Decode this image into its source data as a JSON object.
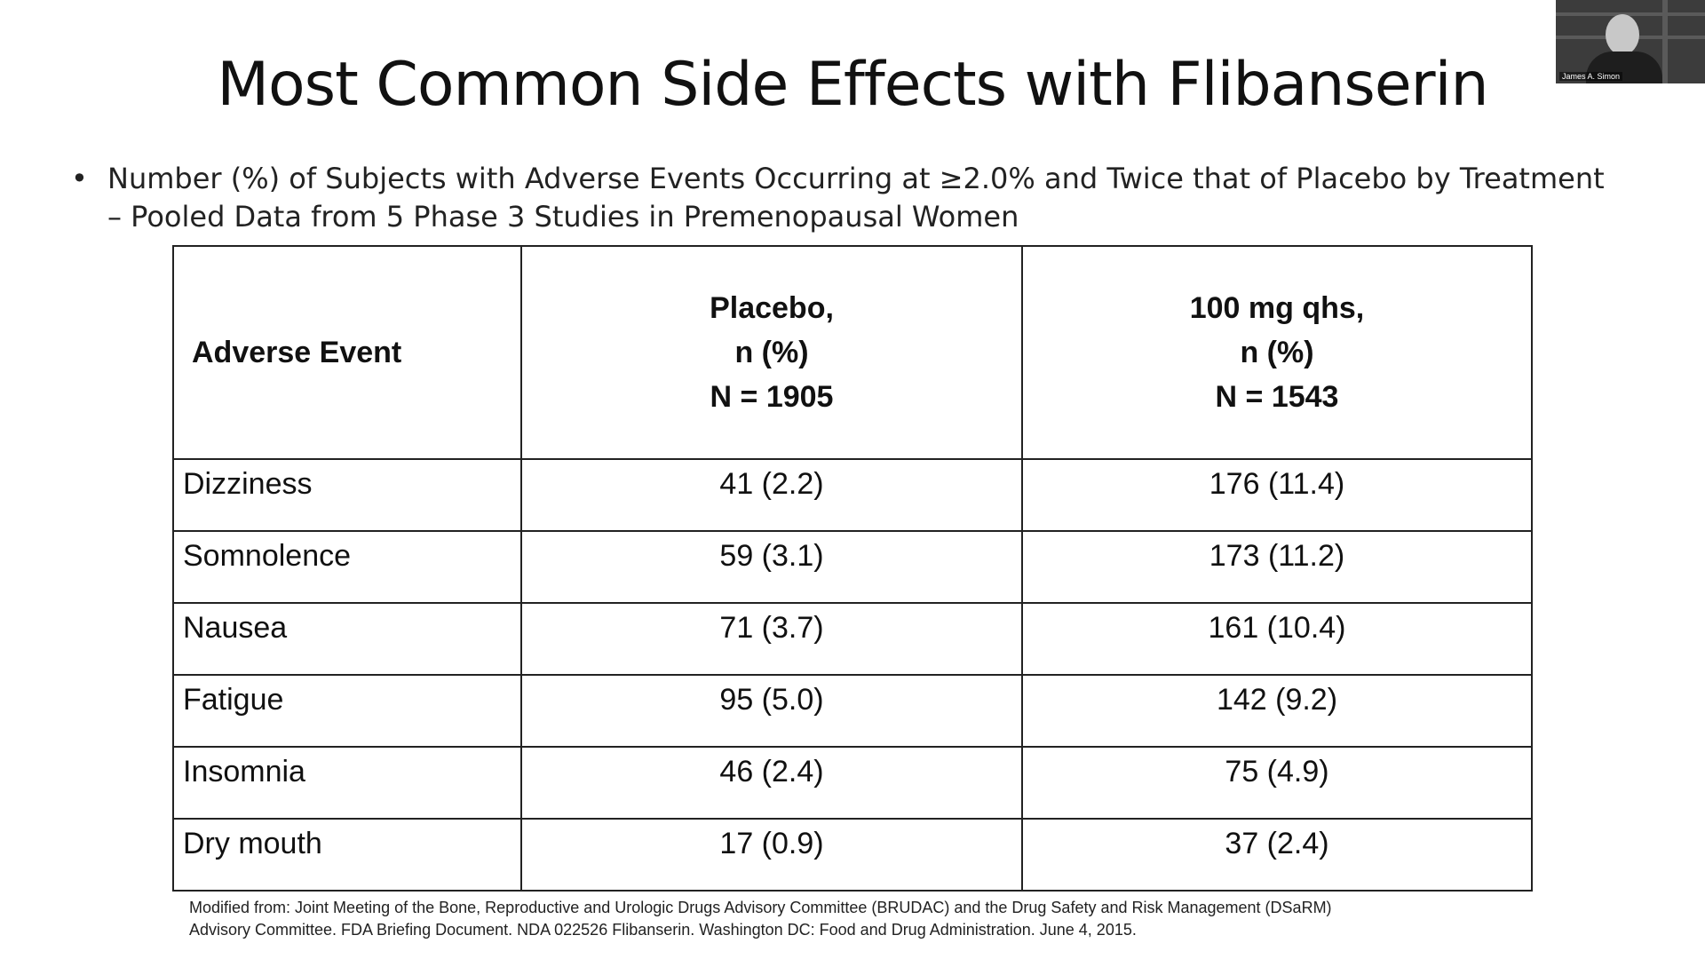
{
  "slide": {
    "title": "Most Common Side Effects with Flibanserin",
    "bullet_symbol": "•",
    "bullet_line1": "Number (%) of Subjects with Adverse Events Occurring at ≥2.0% and Twice that of Placebo by Treatment",
    "bullet_line2": "– Pooled Data from 5 Phase 3 Studies in Premenopausal Women"
  },
  "table": {
    "header": {
      "event": "Adverse Event",
      "placebo_line1": "Placebo,",
      "placebo_line2": "n (%)",
      "placebo_line3": "N = 1905",
      "dose_line1": "100 mg qhs,",
      "dose_line2": "n (%)",
      "dose_line3": "N = 1543"
    },
    "rows": [
      {
        "event": "Dizziness",
        "placebo": "41 (2.2)",
        "dose": "176 (11.4)"
      },
      {
        "event": "Somnolence",
        "placebo": "59 (3.1)",
        "dose": "173 (11.2)"
      },
      {
        "event": "Nausea",
        "placebo": "71 (3.7)",
        "dose": "161 (10.4)"
      },
      {
        "event": "Fatigue",
        "placebo": "95 (5.0)",
        "dose": "142 (9.2)"
      },
      {
        "event": "Insomnia",
        "placebo": "46 (2.4)",
        "dose": "75 (4.9)"
      },
      {
        "event": "Dry mouth",
        "placebo": "17 (0.9)",
        "dose": "37 (2.4)"
      }
    ]
  },
  "footnote": {
    "line1": "Modified from: Joint Meeting of the Bone, Reproductive and Urologic Drugs Advisory Committee (BRUDAC) and the Drug Safety and Risk Management (DSaRM)",
    "line2": "Advisory Committee. FDA Briefing Document. NDA 022526 Flibanserin. Washington DC: Food and Drug Administration. June 4, 2015."
  },
  "webcam": {
    "participant_name": "James A. Simon"
  }
}
